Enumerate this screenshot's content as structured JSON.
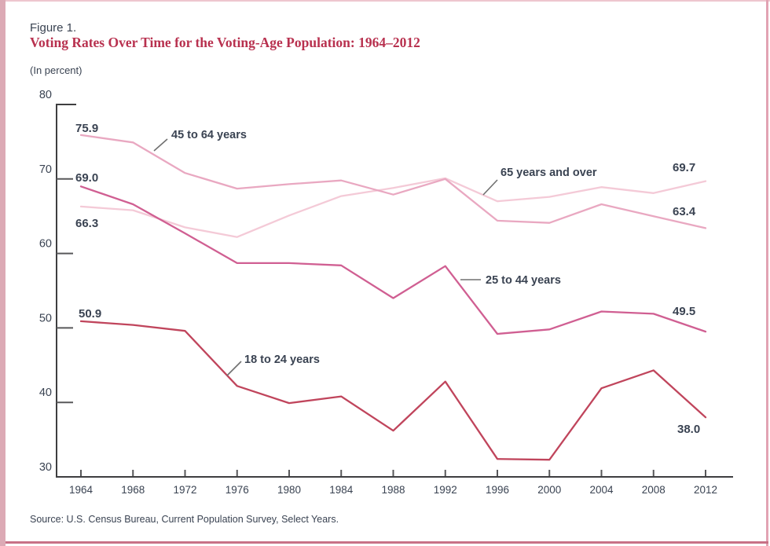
{
  "header": {
    "figure_label": "Figure 1.",
    "title": "Voting Rates Over Time for the Voting-Age Population: 1964–2012",
    "units": "(In percent)"
  },
  "footer": {
    "source": "Source: U.S. Census Bureau, Current Population Survey, Select Years."
  },
  "colors": {
    "title_accent": "#b8314f",
    "label_text": "#3a4352",
    "axis": "#3e3e40",
    "tick": "#58585a",
    "leader": "#707070",
    "border_left": "#dcaab5",
    "border_top": "#eec6cf",
    "border_right": "#e2a3b3",
    "border_bottom": "#c87186"
  },
  "chart_data": {
    "type": "line",
    "title": "Voting Rates Over Time for the Voting-Age Population: 1964–2012",
    "ylabel": "(In percent)",
    "xlabel": "",
    "x": [
      1964,
      1968,
      1972,
      1976,
      1980,
      1984,
      1988,
      1992,
      1996,
      2000,
      2004,
      2008,
      2012
    ],
    "ylim": [
      30,
      80
    ],
    "yticks": [
      30,
      40,
      50,
      60,
      70,
      80
    ],
    "grid": false,
    "legend_position": "inline-annotations",
    "series": [
      {
        "name": "18 to 24 years",
        "color": "#c0455c",
        "values": [
          50.9,
          50.4,
          49.6,
          42.2,
          39.9,
          40.8,
          36.2,
          42.8,
          32.4,
          32.3,
          41.9,
          44.3,
          38.0
        ],
        "start_label": "50.9",
        "end_label": "38.0"
      },
      {
        "name": "25 to 44 years",
        "color": "#d05f92",
        "values": [
          69.0,
          66.6,
          62.7,
          58.7,
          58.7,
          58.4,
          54.0,
          58.3,
          49.2,
          49.8,
          52.2,
          51.9,
          49.5
        ],
        "start_label": "69.0",
        "end_label": "49.5"
      },
      {
        "name": "45 to 64 years",
        "color": "#e9a8c1",
        "values": [
          75.9,
          74.9,
          70.8,
          68.7,
          69.3,
          69.8,
          67.9,
          70.0,
          64.4,
          64.1,
          66.6,
          65.0,
          63.4
        ],
        "start_label": "75.9",
        "end_label": "63.4"
      },
      {
        "name": "65 years and over",
        "color": "#f4cad7",
        "values": [
          66.3,
          65.8,
          63.5,
          62.2,
          65.1,
          67.7,
          68.8,
          70.1,
          67.0,
          67.6,
          68.9,
          68.1,
          69.7
        ],
        "start_label": "66.3",
        "end_label": "69.7"
      }
    ]
  }
}
